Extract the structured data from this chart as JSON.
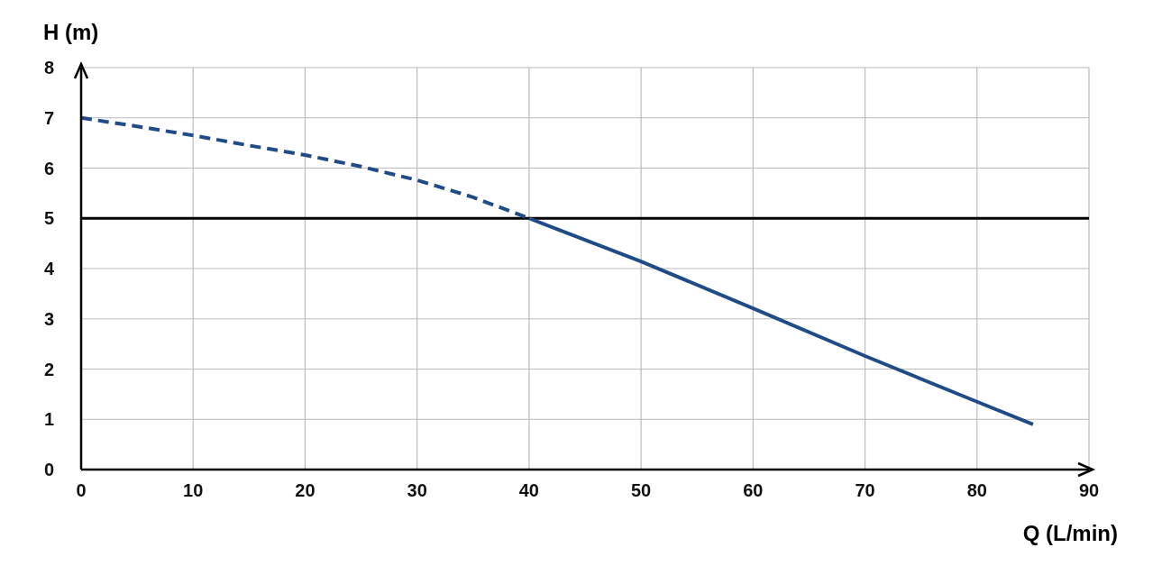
{
  "chart_data": {
    "type": "line",
    "xlabel": "Q (L/min)",
    "ylabel": "H (m)",
    "series": [
      {
        "color": "#1f4b87",
        "line_style": "dashed",
        "x": [
          0,
          5,
          10,
          15,
          20,
          25,
          30,
          35,
          40
        ],
        "values": [
          7.0,
          6.83,
          6.65,
          6.45,
          6.26,
          6.03,
          5.76,
          5.42,
          5.0
        ]
      },
      {
        "color": "#1f4b87",
        "line_style": "solid",
        "x": [
          40,
          50,
          60,
          70,
          80,
          85
        ],
        "values": [
          5.0,
          4.14,
          3.21,
          2.26,
          1.35,
          0.9
        ]
      }
    ],
    "xlim": [
      0,
      90
    ],
    "xticks": [
      0,
      10,
      20,
      30,
      40,
      50,
      60,
      70,
      80,
      90
    ],
    "ylim": [
      0,
      8
    ],
    "yticks": [
      0,
      1,
      2,
      3,
      4,
      5,
      6,
      7,
      8
    ],
    "ref_lines": [
      {
        "axis": "y",
        "value": 5,
        "color": "#000000",
        "line_style": "solid"
      }
    ],
    "grid": true,
    "marker": "none"
  }
}
